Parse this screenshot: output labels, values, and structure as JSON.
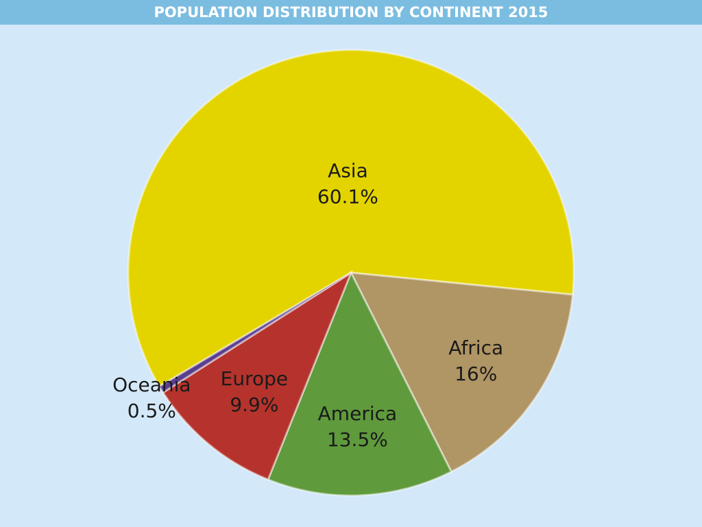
{
  "chart_data": {
    "type": "pie",
    "title": "POPULATION DISTRIBUTION BY CONTINENT 2015",
    "categories": [
      "Asia",
      "Africa",
      "America",
      "Europe",
      "Oceania"
    ],
    "values": [
      60.1,
      16,
      13.5,
      9.9,
      0.5
    ],
    "value_labels": [
      "60.1%",
      "16%",
      "13.5%",
      "9.9%",
      "0.5%"
    ],
    "colors": [
      "#e3d400",
      "#b09565",
      "#5f9a3c",
      "#b5332c",
      "#5a3d8e"
    ]
  }
}
